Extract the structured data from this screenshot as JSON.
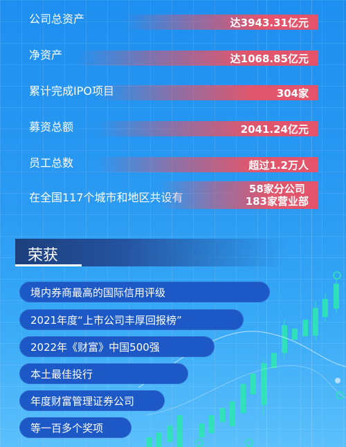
{
  "stats": [
    {
      "label": "公司总资产",
      "value": "达3943.31亿元"
    },
    {
      "label": "净资产",
      "value": "达1068.85亿元"
    },
    {
      "label": "累计完成IPO项目",
      "value": "304家"
    },
    {
      "label": "募资总额",
      "value": "2041.24亿元"
    },
    {
      "label": "员工总数",
      "value": "超过1.2万人"
    },
    {
      "label": "在全国117个城市和地区共设有",
      "value_line1": "58家分公司",
      "value_line2": "183家营业部"
    }
  ],
  "section": {
    "title": "荣获"
  },
  "awards": [
    "境内券商最高的国际信用评级",
    "2021年度“上市公司丰厚回报榜”",
    "2022年《财富》中国500强",
    "本土最佳投行",
    "年度财富管理证券公司",
    "等一百多个奖项"
  ],
  "colors": {
    "background": "#2a9af2",
    "bar_accent": "#e4536a",
    "pill": "#1d59c6",
    "section_band": "#1c3f7c"
  }
}
